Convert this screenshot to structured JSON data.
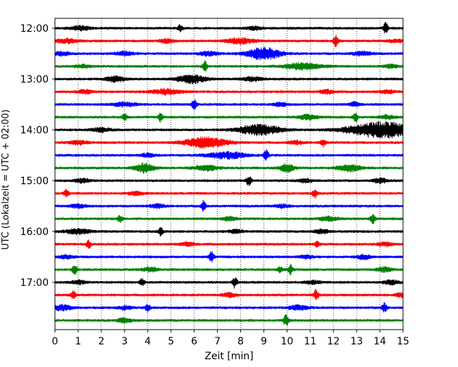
{
  "chart_data": {
    "type": "line",
    "title": "",
    "xlabel": "Zeit  [min]",
    "ylabel": "UTC (Lokalzeit = UTC + 02:00)",
    "xlim": [
      0,
      15
    ],
    "x_ticks": [
      "0",
      "1",
      "2",
      "3",
      "4",
      "5",
      "6",
      "7",
      "8",
      "9",
      "10",
      "11",
      "12",
      "13",
      "14",
      "15"
    ],
    "y_tick_labels": [
      "12:00",
      "13:00",
      "14:00",
      "15:00",
      "16:00",
      "17:00"
    ],
    "grid": "vertical dotted",
    "legend": "none",
    "trace_colors": [
      "#000000",
      "#ff0000",
      "#0000ff",
      "#008000"
    ],
    "traces": [
      {
        "start": "12:00",
        "color": "#000000",
        "events": [
          [
            1.1,
            0.3,
            0.4
          ],
          [
            5.4,
            0.5,
            0.1
          ],
          [
            8.6,
            0.25,
            0.3
          ],
          [
            14.25,
            0.9,
            0.1
          ]
        ]
      },
      {
        "start": "12:15",
        "color": "#ff0000",
        "events": [
          [
            0.5,
            0.3,
            0.5
          ],
          [
            4.8,
            0.3,
            0.3
          ],
          [
            8.0,
            0.4,
            0.6
          ],
          [
            12.1,
            0.9,
            0.1
          ],
          [
            14.7,
            0.25,
            0.3
          ]
        ]
      },
      {
        "start": "12:30",
        "color": "#0000ff",
        "events": [
          [
            0.3,
            0.3,
            0.3
          ],
          [
            3.0,
            0.3,
            0.4
          ],
          [
            6.6,
            0.3,
            0.4
          ],
          [
            9.0,
            0.9,
            0.7
          ],
          [
            13.2,
            0.3,
            0.4
          ]
        ]
      },
      {
        "start": "12:45",
        "color": "#008000",
        "events": [
          [
            1.2,
            0.25,
            0.3
          ],
          [
            6.45,
            0.8,
            0.1
          ],
          [
            10.7,
            0.5,
            0.8
          ],
          [
            14.5,
            0.25,
            0.3
          ]
        ]
      },
      {
        "start": "13:00",
        "color": "#000000",
        "events": [
          [
            2.6,
            0.4,
            0.4
          ],
          [
            5.9,
            0.6,
            0.6
          ],
          [
            8.5,
            0.3,
            0.4
          ]
        ]
      },
      {
        "start": "13:15",
        "color": "#ff0000",
        "events": [
          [
            1.3,
            0.3,
            0.3
          ],
          [
            4.8,
            0.4,
            0.6
          ],
          [
            11.7,
            0.3,
            0.3
          ],
          [
            14.3,
            0.25,
            0.3
          ]
        ]
      },
      {
        "start": "13:30",
        "color": "#0000ff",
        "events": [
          [
            3.0,
            0.3,
            0.5
          ],
          [
            6.0,
            0.8,
            0.1
          ],
          [
            9.7,
            0.25,
            0.3
          ],
          [
            12.9,
            0.35,
            0.2
          ]
        ]
      },
      {
        "start": "13:45",
        "color": "#008000",
        "events": [
          [
            3.0,
            0.6,
            0.1
          ],
          [
            4.55,
            0.7,
            0.1
          ],
          [
            10.9,
            0.35,
            0.4
          ],
          [
            12.95,
            0.7,
            0.1
          ],
          [
            14.3,
            0.3,
            0.3
          ]
        ]
      },
      {
        "start": "14:00",
        "color": "#000000",
        "events": [
          [
            2.0,
            0.3,
            0.4
          ],
          [
            8.8,
            0.8,
            0.9
          ],
          [
            14.1,
            1.2,
            1.4
          ]
        ]
      },
      {
        "start": "14:15",
        "color": "#ff0000",
        "events": [
          [
            1.0,
            0.3,
            0.4
          ],
          [
            6.5,
            0.8,
            0.9
          ],
          [
            10.4,
            0.25,
            0.3
          ],
          [
            11.55,
            0.6,
            0.1
          ]
        ]
      },
      {
        "start": "14:30",
        "color": "#0000ff",
        "events": [
          [
            4.0,
            0.25,
            0.3
          ],
          [
            7.4,
            0.5,
            0.8
          ],
          [
            9.1,
            0.8,
            0.1
          ]
        ]
      },
      {
        "start": "14:45",
        "color": "#008000",
        "events": [
          [
            3.85,
            0.7,
            0.4
          ],
          [
            6.5,
            0.4,
            0.5
          ],
          [
            10.0,
            0.6,
            0.3
          ],
          [
            12.7,
            0.5,
            0.5
          ]
        ]
      },
      {
        "start": "15:00",
        "color": "#000000",
        "events": [
          [
            1.2,
            0.3,
            0.3
          ],
          [
            8.35,
            0.8,
            0.1
          ],
          [
            10.8,
            0.25,
            0.3
          ],
          [
            14.0,
            0.35,
            0.3
          ]
        ]
      },
      {
        "start": "15:15",
        "color": "#ff0000",
        "events": [
          [
            0.5,
            0.6,
            0.1
          ],
          [
            3.5,
            0.25,
            0.3
          ],
          [
            11.2,
            0.7,
            0.1
          ]
        ]
      },
      {
        "start": "15:30",
        "color": "#0000ff",
        "events": [
          [
            1.0,
            0.3,
            0.3
          ],
          [
            4.4,
            0.3,
            0.3
          ],
          [
            6.4,
            0.8,
            0.1
          ],
          [
            9.8,
            0.25,
            0.3
          ]
        ]
      },
      {
        "start": "15:45",
        "color": "#008000",
        "events": [
          [
            2.8,
            0.5,
            0.1
          ],
          [
            7.5,
            0.3,
            0.3
          ],
          [
            11.8,
            0.3,
            0.4
          ],
          [
            13.7,
            0.8,
            0.1
          ]
        ]
      },
      {
        "start": "16:00",
        "color": "#000000",
        "events": [
          [
            1.0,
            0.4,
            0.5
          ],
          [
            4.55,
            0.6,
            0.1
          ],
          [
            7.8,
            0.25,
            0.3
          ],
          [
            11.5,
            0.3,
            0.3
          ]
        ]
      },
      {
        "start": "16:15",
        "color": "#ff0000",
        "events": [
          [
            1.45,
            0.6,
            0.1
          ],
          [
            5.7,
            0.3,
            0.3
          ],
          [
            11.3,
            0.4,
            0.1
          ],
          [
            14.2,
            0.3,
            0.3
          ]
        ]
      },
      {
        "start": "16:30",
        "color": "#0000ff",
        "events": [
          [
            0.5,
            0.25,
            0.3
          ],
          [
            6.75,
            0.8,
            0.1
          ],
          [
            10.8,
            0.25,
            0.3
          ],
          [
            13.3,
            0.35,
            0.3
          ]
        ]
      },
      {
        "start": "16:45",
        "color": "#008000",
        "events": [
          [
            0.85,
            0.7,
            0.1
          ],
          [
            4.1,
            0.35,
            0.3
          ],
          [
            9.7,
            0.5,
            0.1
          ],
          [
            10.15,
            0.7,
            0.1
          ],
          [
            14.2,
            0.35,
            0.3
          ]
        ]
      },
      {
        "start": "17:00",
        "color": "#000000",
        "events": [
          [
            1.0,
            0.3,
            0.3
          ],
          [
            3.75,
            0.5,
            0.1
          ],
          [
            7.75,
            0.8,
            0.1
          ],
          [
            11.1,
            0.25,
            0.3
          ],
          [
            14.5,
            0.35,
            0.3
          ]
        ]
      },
      {
        "start": "17:15",
        "color": "#ff0000",
        "events": [
          [
            0.8,
            0.6,
            0.1
          ],
          [
            7.5,
            0.3,
            0.3
          ],
          [
            11.25,
            0.9,
            0.1
          ],
          [
            14.9,
            0.35,
            0.2
          ]
        ]
      },
      {
        "start": "17:30",
        "color": "#0000ff",
        "events": [
          [
            0.3,
            0.4,
            0.4
          ],
          [
            3.0,
            0.25,
            0.3
          ],
          [
            4.0,
            0.6,
            0.1
          ],
          [
            10.5,
            0.35,
            0.4
          ],
          [
            14.2,
            0.8,
            0.1
          ]
        ]
      },
      {
        "start": "17:45",
        "color": "#008000",
        "events": [
          [
            3.0,
            0.3,
            0.3
          ],
          [
            9.95,
            0.9,
            0.1
          ]
        ]
      }
    ]
  }
}
